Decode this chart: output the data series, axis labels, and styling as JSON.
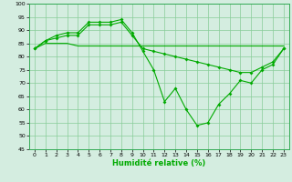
{
  "x": [
    0,
    1,
    2,
    3,
    4,
    5,
    6,
    7,
    8,
    9,
    10,
    11,
    12,
    13,
    14,
    15,
    16,
    17,
    18,
    19,
    20,
    21,
    22,
    23
  ],
  "line1": [
    83,
    86,
    88,
    89,
    89,
    93,
    93,
    93,
    94,
    89,
    82,
    75,
    63,
    68,
    60,
    54,
    55,
    62,
    66,
    71,
    70,
    75,
    77,
    83
  ],
  "line2": [
    83,
    86,
    87,
    88,
    88,
    92,
    92,
    92,
    93,
    88,
    83,
    82,
    81,
    80,
    79,
    78,
    77,
    76,
    75,
    74,
    74,
    76,
    78,
    83
  ],
  "line3": [
    83,
    85,
    85,
    85,
    84,
    84,
    84,
    84,
    84,
    84,
    84,
    84,
    84,
    84,
    84,
    84,
    84,
    84,
    84,
    84,
    84,
    84,
    84,
    84
  ],
  "line_color": "#00aa00",
  "bg_color": "#d4ede0",
  "grid_color": "#88cc99",
  "xlabel": "Humidité relative (%)",
  "ylim": [
    45,
    100
  ],
  "yticks": [
    45,
    50,
    55,
    60,
    65,
    70,
    75,
    80,
    85,
    90,
    95,
    100
  ],
  "xticks": [
    0,
    1,
    2,
    3,
    4,
    5,
    6,
    7,
    8,
    9,
    10,
    11,
    12,
    13,
    14,
    15,
    16,
    17,
    18,
    19,
    20,
    21,
    22,
    23
  ]
}
